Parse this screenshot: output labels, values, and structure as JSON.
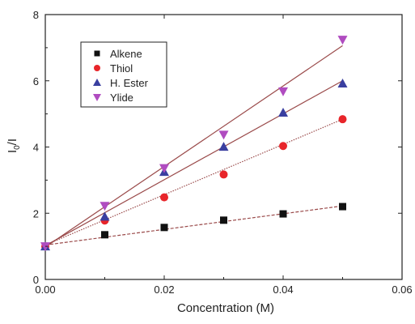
{
  "chart_data": {
    "type": "scatter",
    "title": "",
    "xlabel": "Concentration (M)",
    "ylabel_main": "I",
    "ylabel_sub": "0",
    "ylabel_tail": "/I",
    "xlim": [
      0.0,
      0.06
    ],
    "ylim": [
      0,
      8
    ],
    "x_ticks": [
      0.0,
      0.02,
      0.04,
      0.06
    ],
    "x_tick_labels": [
      "0.00",
      "0.02",
      "0.04",
      "0.06"
    ],
    "y_ticks": [
      0,
      2,
      4,
      6,
      8
    ],
    "y_tick_labels": [
      "0",
      "2",
      "4",
      "6",
      "8"
    ],
    "grid": false,
    "legend_position": "top-left",
    "series": [
      {
        "name": "Alkene",
        "marker": "square",
        "color": "#111111",
        "fit_style": "dashed",
        "x": [
          0.0,
          0.01,
          0.02,
          0.03,
          0.04,
          0.05
        ],
        "y": [
          1.0,
          1.35,
          1.57,
          1.79,
          1.98,
          2.2
        ],
        "fit_intercept": 1.04,
        "fit_slope": 23.6
      },
      {
        "name": "Thiol",
        "marker": "circle",
        "color": "#e8252a",
        "fit_style": "dotted",
        "x": [
          0.0,
          0.01,
          0.02,
          0.03,
          0.04,
          0.05
        ],
        "y": [
          1.0,
          1.78,
          2.48,
          3.17,
          4.03,
          4.84
        ],
        "fit_intercept": 1.04,
        "fit_slope": 76.0
      },
      {
        "name": "H. Ester",
        "marker": "triangle-up",
        "color": "#3a3fa0",
        "fit_style": "solid",
        "x": [
          0.0,
          0.01,
          0.02,
          0.03,
          0.04,
          0.05
        ],
        "y": [
          1.0,
          1.9,
          3.25,
          4.01,
          5.04,
          5.92
        ],
        "fit_intercept": 1.02,
        "fit_slope": 99.6
      },
      {
        "name": "Ylide",
        "marker": "triangle-down",
        "color": "#b04cc0",
        "fit_style": "solid",
        "x": [
          0.0,
          0.01,
          0.02,
          0.03,
          0.04,
          0.05
        ],
        "y": [
          1.0,
          2.22,
          3.36,
          4.37,
          5.68,
          7.24
        ],
        "fit_intercept": 0.98,
        "fit_slope": 121.6
      }
    ]
  }
}
